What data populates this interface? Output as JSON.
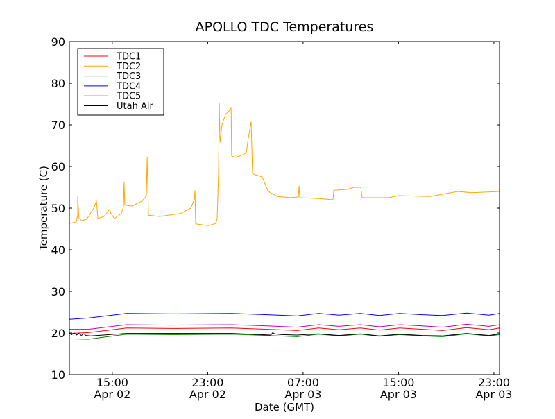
{
  "chart_data": {
    "type": "line",
    "title": "APOLLO TDC Temperatures",
    "xlabel": "Date (GMT)",
    "ylabel": "Temperature (C)",
    "x_units": "hours since Apr 02 00:00 GMT",
    "xlim": [
      11.4,
      47.47
    ],
    "ylim": [
      10,
      90
    ],
    "yticks": [
      10,
      20,
      30,
      40,
      50,
      60,
      70,
      80,
      90
    ],
    "xticks": [
      {
        "value": 15,
        "time": "15:00",
        "date": "Apr 02"
      },
      {
        "value": 23,
        "time": "23:00",
        "date": "Apr 02"
      },
      {
        "value": 31,
        "time": "07:00",
        "date": "Apr 03"
      },
      {
        "value": 39,
        "time": "15:00",
        "date": "Apr 03"
      },
      {
        "value": 47,
        "time": "23:00",
        "date": "Apr 03"
      }
    ],
    "grid": false,
    "legend_position": "top-left",
    "series": [
      {
        "name": "TDC1",
        "color": "#ff0000",
        "x": [
          11.4,
          13,
          16.2,
          20,
          25,
          28,
          30.5,
          32.3,
          34,
          35.8,
          37.4,
          39.1,
          41,
          42.7,
          44.7,
          46.6,
          47.47
        ],
        "y": [
          19.9,
          20.1,
          21.2,
          21.1,
          21.2,
          20.9,
          20.6,
          21.2,
          20.8,
          21.2,
          20.7,
          21.2,
          20.9,
          20.6,
          21.3,
          20.8,
          21.2
        ]
      },
      {
        "name": "TDC2",
        "color": "#ffa500",
        "x": [
          11.4,
          11.98,
          12.1,
          12.1,
          12.21,
          12.45,
          12.85,
          13.44,
          13.67,
          13.79,
          14.31,
          14.77,
          14.89,
          15.18,
          15.76,
          15.94,
          15.99,
          16.05,
          16.64,
          17.51,
          17.86,
          17.92,
          18.03,
          18.96,
          20.71,
          21.58,
          21.87,
          21.93,
          21.99,
          23.04,
          23.68,
          23.79,
          23.91,
          23.97,
          24.03,
          24.2,
          24.49,
          24.78,
          24.96,
          25.01,
          25.36,
          25.95,
          26.24,
          26.35,
          26.59,
          26.64,
          26.76,
          26.99,
          27.57,
          27.81,
          28.04,
          28.27,
          28.85,
          30.02,
          30.6,
          30.66,
          30.72,
          32.34,
          33.51,
          33.57,
          34.67,
          35.25,
          35.84,
          35.95,
          38.16,
          39.04,
          41.65,
          43.98,
          45.14,
          47.47
        ],
        "y": [
          46.3,
          46.7,
          48.3,
          52.8,
          47.5,
          47.0,
          47.3,
          50.0,
          51.7,
          47.5,
          48.0,
          49.7,
          48.7,
          47.5,
          48.7,
          50.3,
          56.3,
          50.7,
          50.5,
          51.7,
          53.0,
          62.3,
          48.3,
          48.0,
          48.7,
          50.0,
          52.0,
          54.2,
          46.2,
          45.8,
          46.3,
          47.5,
          58.3,
          75.3,
          65.8,
          70.0,
          72.5,
          73.3,
          74.2,
          62.5,
          62.2,
          62.8,
          63.3,
          65.8,
          70.0,
          70.7,
          58.3,
          58.0,
          57.5,
          55.8,
          54.2,
          53.7,
          52.8,
          52.5,
          52.7,
          55.3,
          52.5,
          52.3,
          52.0,
          54.3,
          54.5,
          55.0,
          55.0,
          52.5,
          52.5,
          53.0,
          52.8,
          54.0,
          53.7,
          54.0
        ]
      },
      {
        "name": "TDC3",
        "color": "#008000",
        "x": [
          11.4,
          13,
          16.2,
          20,
          25,
          28,
          30.5,
          32.3,
          34,
          35.8,
          37.4,
          39.1,
          41,
          42.7,
          44.7,
          46.6,
          47.47
        ],
        "y": [
          18.6,
          18.5,
          19.7,
          19.6,
          19.7,
          19.4,
          19.1,
          19.7,
          19.3,
          19.7,
          19.2,
          19.6,
          19.3,
          19.1,
          19.8,
          19.3,
          19.6
        ]
      },
      {
        "name": "TDC4",
        "color": "#0000ff",
        "x": [
          11.4,
          13,
          16.2,
          20,
          25,
          28,
          30.5,
          32.3,
          34,
          35.8,
          37.4,
          39.1,
          41,
          42.7,
          44.7,
          46.6,
          47.47
        ],
        "y": [
          23.3,
          23.6,
          24.7,
          24.6,
          24.7,
          24.4,
          24.1,
          24.7,
          24.3,
          24.7,
          24.2,
          24.7,
          24.4,
          24.2,
          24.8,
          24.3,
          24.7
        ]
      },
      {
        "name": "TDC5",
        "color": "#bf00bf",
        "x": [
          11.4,
          13,
          16.2,
          20,
          25,
          28,
          30.5,
          32.3,
          34,
          35.8,
          37.4,
          39.1,
          41,
          42.7,
          44.7,
          46.6,
          47.47
        ],
        "y": [
          20.9,
          20.9,
          22.0,
          21.9,
          22.0,
          21.7,
          21.4,
          22.0,
          21.6,
          22.0,
          21.5,
          22.0,
          21.7,
          21.4,
          22.1,
          21.6,
          22.0
        ]
      },
      {
        "name": "Utah Air",
        "color": "#000000",
        "x": [
          11.4,
          11.6,
          11.8,
          12.0,
          12.2,
          12.4,
          12.6,
          12.8,
          13.2,
          16.2,
          20,
          25,
          28.3,
          28.45,
          28.6,
          29.2,
          30.5,
          32.3,
          34,
          35.8,
          37.4,
          39.1,
          41,
          42.7,
          44.7,
          46.6,
          47.47
        ],
        "y": [
          19.9,
          19.6,
          20.0,
          19.5,
          19.9,
          19.4,
          19.8,
          19.4,
          19.3,
          19.9,
          19.9,
          19.9,
          19.5,
          20.1,
          19.8,
          19.6,
          19.5,
          19.8,
          19.4,
          19.8,
          19.3,
          19.7,
          19.4,
          19.3,
          19.9,
          19.4,
          19.8
        ]
      }
    ]
  }
}
